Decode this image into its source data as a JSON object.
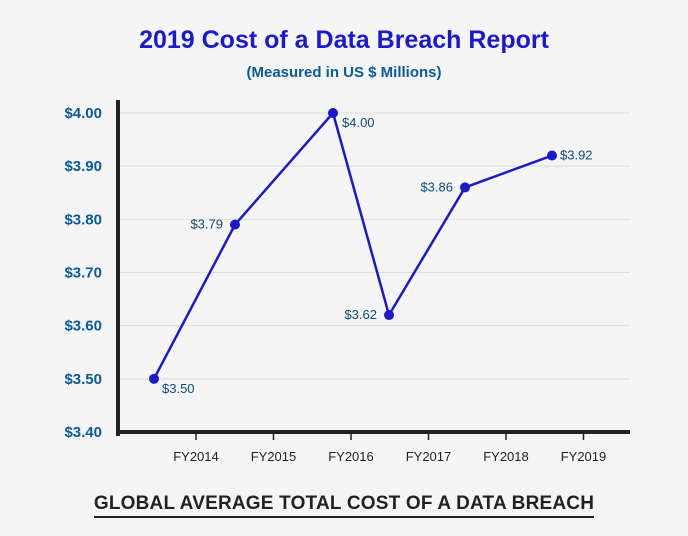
{
  "chart_data": {
    "type": "line",
    "title": "2019 Cost of a Data Breach Report",
    "subtitle": "(Measured in US $ Millions)",
    "xlabel": "GLOBAL AVERAGE TOTAL COST OF A DATA BREACH",
    "ylabel": "",
    "ylim": [
      3.4,
      4.0
    ],
    "yticks": [
      "$3.40",
      "$3.50",
      "$3.60",
      "$3.70",
      "$3.80",
      "$3.90",
      "$4.00"
    ],
    "categories": [
      "FY2014",
      "FY2015",
      "FY2016",
      "FY2017",
      "FY2018",
      "FY2019"
    ],
    "grid": true,
    "line_color": "#1a1acc",
    "series": [
      {
        "values": [
          3.5,
          3.79,
          4.0,
          3.62,
          3.86,
          3.92
        ],
        "labels": [
          "$3.50",
          "$3.79",
          "$4.00",
          "$3.62",
          "$3.86",
          "$3.92"
        ]
      }
    ]
  }
}
